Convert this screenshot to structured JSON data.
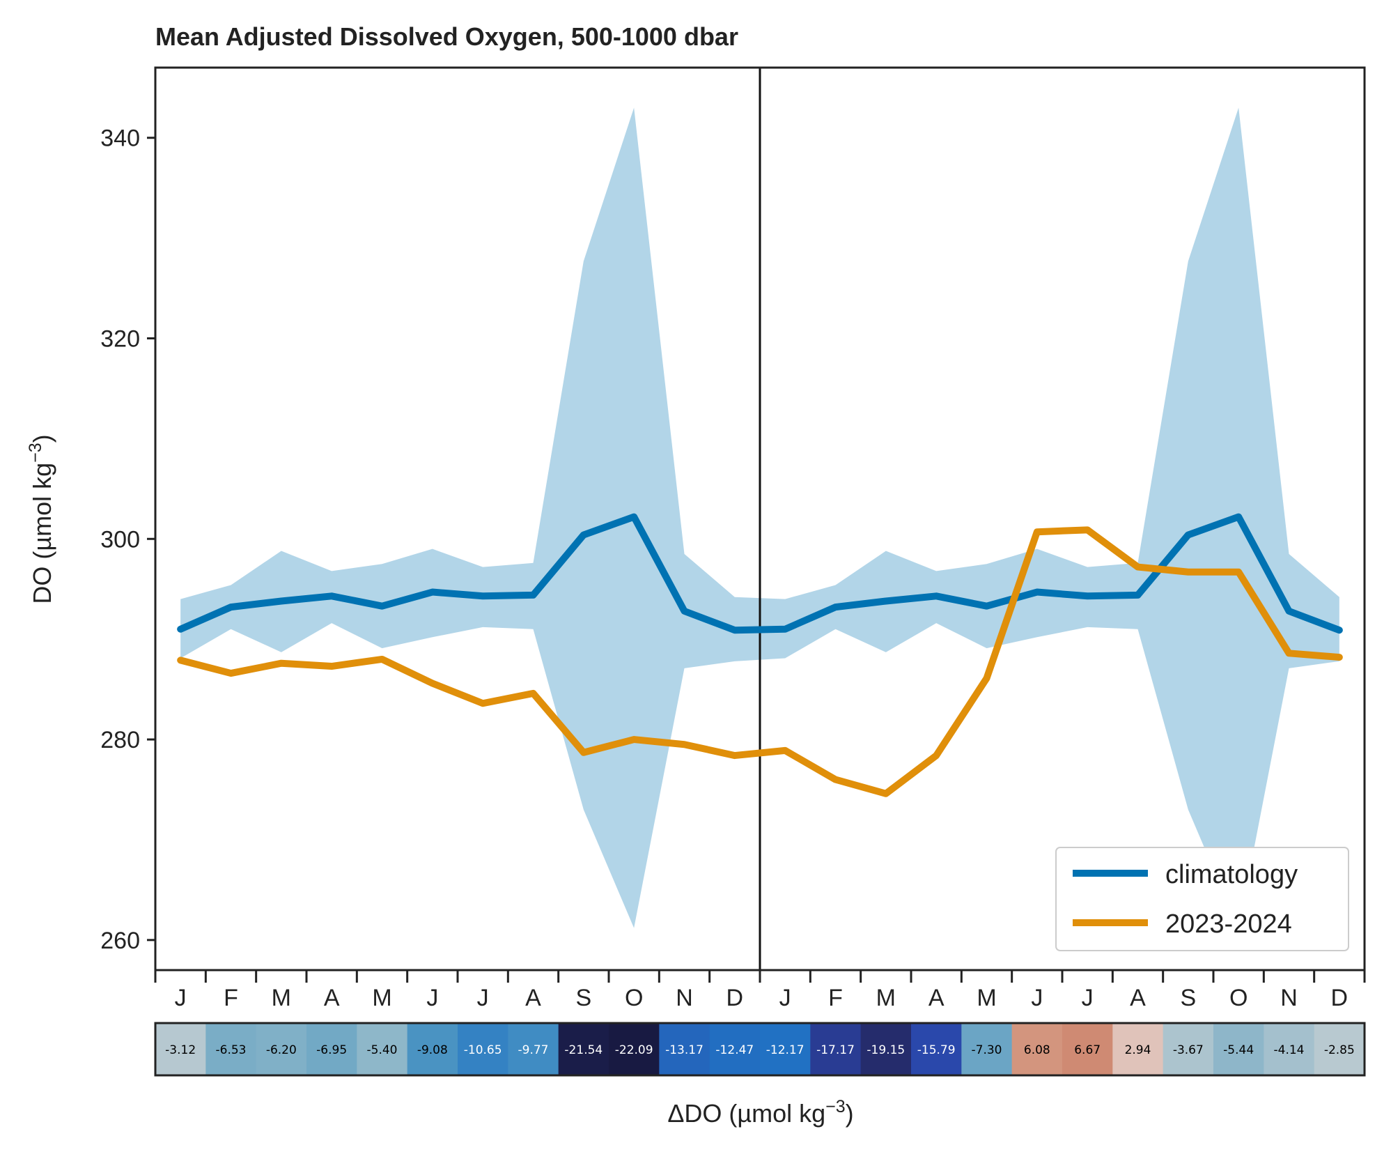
{
  "chart_data": {
    "type": "line",
    "title": "Mean Adjusted Dissolved Oxygen, 500-1000 dbar",
    "ylabel": "DO (µmol kg",
    "ylabel_sup": "−3",
    "ylabel_close": ")",
    "cbar_label": "ΔDO (µmol kg",
    "cbar_label_sup": "−3",
    "cbar_label_close": ")",
    "ylim": [
      257,
      347
    ],
    "yticks": [
      260,
      280,
      300,
      320,
      340
    ],
    "x_months": [
      "J",
      "F",
      "M",
      "A",
      "M",
      "J",
      "J",
      "A",
      "S",
      "O",
      "N",
      "D",
      "J",
      "F",
      "M",
      "A",
      "M",
      "J",
      "J",
      "A",
      "S",
      "O",
      "N",
      "D"
    ],
    "divider_after_index": 11,
    "series": [
      {
        "name": "climatology",
        "color": "#0072b2",
        "values": [
          291.0,
          293.2,
          293.8,
          294.3,
          293.3,
          294.7,
          294.3,
          294.4,
          300.4,
          302.2,
          292.8,
          290.9,
          291.0,
          293.2,
          293.8,
          294.3,
          293.3,
          294.7,
          294.3,
          294.4,
          300.4,
          302.2,
          292.8,
          290.9
        ]
      },
      {
        "name": "2023-2024",
        "color": "#e08f0a",
        "values": [
          287.9,
          286.6,
          287.6,
          287.3,
          288.0,
          285.6,
          283.6,
          284.6,
          278.7,
          280.0,
          279.5,
          278.4,
          278.9,
          276.0,
          274.6,
          278.4,
          286.1,
          300.7,
          300.9,
          297.2,
          296.7,
          296.7,
          288.6,
          288.2
        ]
      }
    ],
    "band": {
      "color": "#b2d5e8",
      "upper": [
        294.0,
        295.4,
        298.8,
        296.8,
        297.5,
        299.0,
        297.2,
        297.6,
        327.7,
        343.0,
        298.5,
        294.2,
        294.0,
        295.4,
        298.8,
        296.8,
        297.5,
        299.0,
        297.2,
        297.6,
        327.7,
        343.0,
        298.5,
        294.2
      ],
      "lower": [
        288.1,
        291.0,
        288.7,
        291.6,
        289.1,
        290.2,
        291.2,
        291.0,
        273.0,
        261.2,
        287.1,
        287.8,
        288.1,
        291.0,
        288.7,
        291.6,
        289.1,
        290.2,
        291.2,
        291.0,
        273.0,
        261.2,
        287.1,
        287.8
      ]
    },
    "delta_do": {
      "values": [
        -3.12,
        -6.53,
        -6.2,
        -6.95,
        -5.4,
        -9.08,
        -10.65,
        -9.77,
        -21.54,
        -22.09,
        -13.17,
        -12.47,
        -12.17,
        -17.17,
        -19.15,
        -15.79,
        -7.3,
        6.08,
        6.67,
        2.94,
        -3.67,
        -5.44,
        -4.14,
        -2.85
      ],
      "labels": [
        "-3.12",
        "-6.53",
        "-6.20",
        "-6.95",
        "-5.40",
        "-9.08",
        "-10.65",
        "-9.77",
        "-21.54",
        "-22.09",
        "-13.17",
        "-12.47",
        "-12.17",
        "-17.17",
        "-19.15",
        "-15.79",
        "-7.30",
        "6.08",
        "6.67",
        "2.94",
        "-3.67",
        "-5.44",
        "-4.14",
        "-2.85"
      ]
    },
    "legend": {
      "position": "lower-right",
      "entries": [
        "climatology",
        "2023-2024"
      ]
    },
    "grid": false
  }
}
